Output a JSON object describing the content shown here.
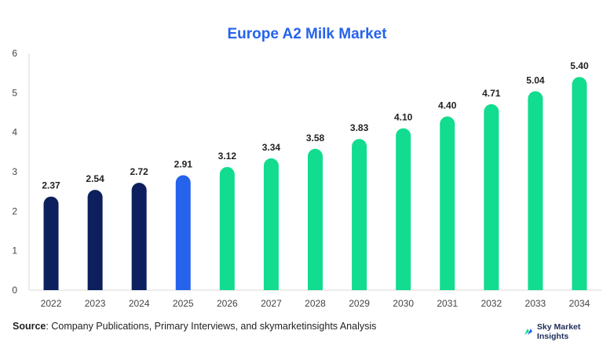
{
  "chart_data": {
    "type": "bar",
    "title": "Europe A2 Milk Market",
    "categories": [
      "2022",
      "2023",
      "2024",
      "2025",
      "2026",
      "2027",
      "2028",
      "2029",
      "2030",
      "2031",
      "2032",
      "2033",
      "2034"
    ],
    "values": [
      2.37,
      2.54,
      2.72,
      2.91,
      3.12,
      3.34,
      3.58,
      3.83,
      4.1,
      4.4,
      4.71,
      5.04,
      5.4
    ],
    "value_labels": [
      "2.37",
      "2.54",
      "2.72",
      "2.91",
      "3.12",
      "3.34",
      "3.58",
      "3.83",
      "4.10",
      "4.40",
      "4.71",
      "5.04",
      "5.40"
    ],
    "bar_colors": [
      "#0d1f5c",
      "#0d1f5c",
      "#0d1f5c",
      "#2563eb",
      "#12dc8f",
      "#12dc8f",
      "#12dc8f",
      "#12dc8f",
      "#12dc8f",
      "#12dc8f",
      "#12dc8f",
      "#12dc8f",
      "#12dc8f"
    ],
    "yticks": [
      0,
      1,
      2,
      3,
      4,
      5,
      6
    ],
    "ylim": [
      0,
      6
    ],
    "xlabel": "",
    "ylabel": "",
    "grid": false,
    "legend": "none"
  },
  "footer": {
    "source_label": "Source",
    "source_text": ": Company Publications, Primary Interviews, and skymarketinsights Analysis",
    "brand_name": "Sky Market Insights"
  },
  "colors": {
    "title": "#2563eb",
    "historical": "#0d1f5c",
    "current": "#2563eb",
    "forecast": "#12dc8f"
  }
}
